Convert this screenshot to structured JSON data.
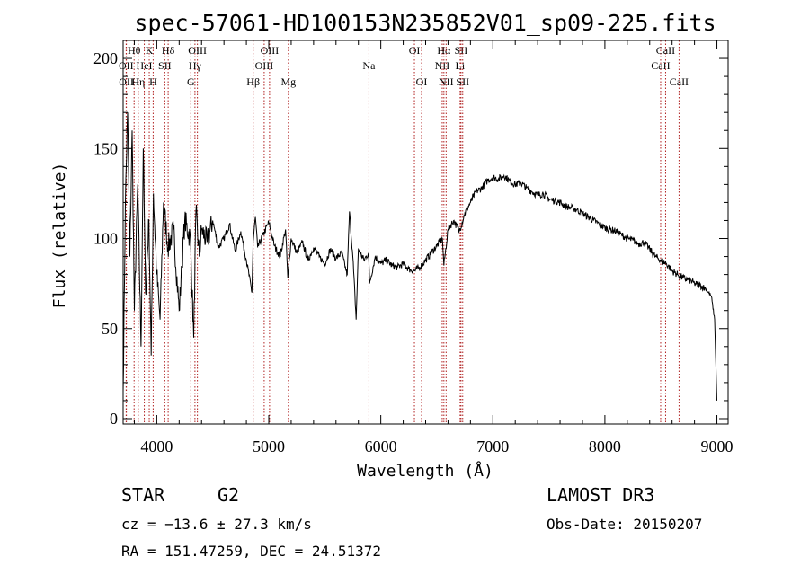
{
  "chart_data": {
    "type": "line",
    "title": "spec-57061-HD100153N235852V01_sp09-225.fits",
    "xlabel": "Wavelength (Å)",
    "ylabel": "Flux (relative)",
    "xlim": [
      3700,
      9100
    ],
    "ylim": [
      -3,
      210
    ],
    "xticks": [
      4000,
      5000,
      6000,
      7000,
      8000,
      9000
    ],
    "yticks": [
      0,
      50,
      100,
      150,
      200
    ],
    "series": [
      {
        "name": "spectrum",
        "x": [
          3700,
          3720,
          3740,
          3760,
          3780,
          3800,
          3830,
          3860,
          3880,
          3900,
          3930,
          3950,
          3970,
          4000,
          4030,
          4060,
          4100,
          4150,
          4200,
          4250,
          4300,
          4330,
          4350,
          4380,
          4400,
          4450,
          4500,
          4550,
          4600,
          4650,
          4700,
          4750,
          4800,
          4850,
          4860,
          4880,
          4900,
          4950,
          5000,
          5050,
          5100,
          5150,
          5170,
          5200,
          5250,
          5300,
          5350,
          5400,
          5450,
          5500,
          5550,
          5600,
          5650,
          5700,
          5720,
          5750,
          5780,
          5800,
          5850,
          5890,
          5900,
          5950,
          6000,
          6050,
          6100,
          6150,
          6200,
          6250,
          6300,
          6350,
          6400,
          6450,
          6500,
          6550,
          6563,
          6600,
          6650,
          6700,
          6750,
          6800,
          6850,
          6900,
          6950,
          7000,
          7050,
          7100,
          7150,
          7200,
          7250,
          7300,
          7350,
          7400,
          7450,
          7500,
          7550,
          7600,
          7650,
          7700,
          7750,
          7800,
          7850,
          7900,
          7950,
          8000,
          8050,
          8100,
          8150,
          8200,
          8250,
          8300,
          8350,
          8400,
          8450,
          8500,
          8550,
          8600,
          8650,
          8700,
          8750,
          8800,
          8850,
          8900,
          8950,
          8980,
          9000
        ],
        "y": [
          15,
          120,
          170,
          90,
          160,
          60,
          130,
          40,
          150,
          70,
          110,
          35,
          125,
          80,
          55,
          120,
          95,
          105,
          60,
          110,
          100,
          45,
          115,
          90,
          105,
          98,
          110,
          95,
          100,
          108,
          93,
          104,
          88,
          70,
          98,
          112,
          95,
          102,
          109,
          96,
          90,
          105,
          78,
          100,
          92,
          98,
          88,
          95,
          90,
          86,
          94,
          89,
          92,
          80,
          115,
          90,
          55,
          94,
          88,
          92,
          75,
          90,
          86,
          88,
          85,
          84,
          86,
          83,
          82,
          84,
          88,
          92,
          96,
          100,
          85,
          105,
          110,
          104,
          114,
          120,
          126,
          128,
          132,
          134,
          133,
          135,
          132,
          130,
          131,
          128,
          126,
          124,
          125,
          122,
          121,
          120,
          118,
          117,
          116,
          114,
          112,
          110,
          108,
          106,
          105,
          104,
          102,
          100,
          99,
          97,
          98,
          94,
          90,
          88,
          86,
          82,
          80,
          78,
          77,
          75,
          74,
          72,
          68,
          55,
          10
        ]
      }
    ],
    "lines": [
      {
        "name": "OII",
        "x": 3727,
        "row": 1
      },
      {
        "name": "OII",
        "x": 3729,
        "row": 2
      },
      {
        "name": "Hθ",
        "x": 3798,
        "row": 0
      },
      {
        "name": "Hη",
        "x": 3835,
        "row": 2
      },
      {
        "name": "HeI",
        "x": 3889,
        "row": 1
      },
      {
        "name": "K",
        "x": 3933,
        "row": 0
      },
      {
        "name": "H",
        "x": 3968,
        "row": 2
      },
      {
        "name": "SII",
        "x": 4072,
        "row": 1
      },
      {
        "name": "Hδ",
        "x": 4102,
        "row": 0
      },
      {
        "name": "G",
        "x": 4304,
        "row": 2
      },
      {
        "name": "Hγ",
        "x": 4341,
        "row": 1
      },
      {
        "name": "OIII",
        "x": 4363,
        "row": 0
      },
      {
        "name": "Hβ",
        "x": 4861,
        "row": 2
      },
      {
        "name": "OIII",
        "x": 4959,
        "row": 1
      },
      {
        "name": "OIII",
        "x": 5007,
        "row": 0
      },
      {
        "name": "Mg",
        "x": 5175,
        "row": 2
      },
      {
        "name": "Na",
        "x": 5894,
        "row": 1
      },
      {
        "name": "OI",
        "x": 6300,
        "row": 0
      },
      {
        "name": "OI",
        "x": 6364,
        "row": 2
      },
      {
        "name": "NII",
        "x": 6548,
        "row": 1
      },
      {
        "name": "Hα",
        "x": 6563,
        "row": 0
      },
      {
        "name": "NII",
        "x": 6583,
        "row": 2
      },
      {
        "name": "Li",
        "x": 6708,
        "row": 1
      },
      {
        "name": "SII",
        "x": 6716,
        "row": 0
      },
      {
        "name": "SII",
        "x": 6731,
        "row": 2
      },
      {
        "name": "CaII",
        "x": 8498,
        "row": 1
      },
      {
        "name": "CaII",
        "x": 8542,
        "row": 0
      },
      {
        "name": "CaII",
        "x": 8662,
        "row": 2
      }
    ]
  },
  "info": {
    "object": "STAR",
    "subclass": "G2",
    "survey": "LAMOST DR3",
    "cz": "cz = −13.6 ± 27.3 km/s",
    "obs_date": "Obs-Date: 20150207",
    "coords": "RA = 151.47259, DEC =  24.51372"
  },
  "colors": {
    "line_marker": "#b02020",
    "spectrum": "#000000"
  }
}
